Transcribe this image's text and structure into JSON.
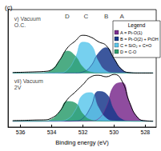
{
  "chart_data": {
    "type": "line",
    "title": "(c)",
    "xlabel": "Binding energy (eV)",
    "x": [
      536.5,
      536,
      535.5,
      535,
      534.5,
      534,
      533.5,
      533,
      532.5,
      532,
      531.5,
      531,
      530.5,
      530,
      529.5,
      529,
      528.5,
      528,
      527.5
    ],
    "xlim": [
      536.8,
      527.3
    ],
    "xticks": [
      536,
      534,
      532,
      530,
      528
    ],
    "ylim": [
      0,
      100
    ],
    "tick_labels": "x",
    "legend": "upper right",
    "legend_title": "Legend",
    "series": [
      {
        "name": "A = Pt-O(1)",
        "type": "area",
        "color": "#7b2d8e",
        "baseline": 5,
        "values": [
          5,
          5,
          5,
          5,
          5,
          5,
          5,
          5,
          5,
          5,
          5.2,
          7.1,
          17.1,
          35.2,
          37.8,
          20.6,
          8.3,
          5.3,
          5
        ]
      },
      {
        "name": "B = Pt-O(2) + PtOH",
        "type": "area",
        "color": "#1a3a8c",
        "baseline": 5,
        "values": [
          5,
          5,
          5,
          5,
          5,
          5,
          5,
          5,
          5.2,
          7.5,
          17.0,
          30.3,
          28.3,
          14.4,
          6.6,
          5.1,
          5,
          5,
          5
        ]
      },
      {
        "name": "C = SiO₂ + C=O",
        "type": "area",
        "color": "#5ec8ec",
        "baseline": 5,
        "values": [
          5,
          5,
          5,
          5,
          5,
          5,
          5.1,
          6.6,
          14.0,
          27.4,
          29.3,
          16.6,
          7.4,
          5.2,
          5,
          5,
          5,
          5,
          5
        ]
      },
      {
        "name": "D = C-O",
        "type": "area",
        "color": "#2e9e6e",
        "baseline": 5,
        "values": [
          5,
          5,
          5,
          5,
          5.1,
          6.7,
          13.0,
          21.8,
          20.5,
          11.2,
          6.1,
          5.1,
          5,
          5,
          5,
          5,
          5,
          5,
          5
        ]
      },
      {
        "name": "B = Pt-O(2) + PtOH",
        "type": "area",
        "color": "#1a3a8c",
        "baseline": 46,
        "values": [
          46,
          46,
          46,
          46,
          46,
          46,
          46,
          46,
          46,
          46.9,
          51.8,
          62.9,
          67.6,
          58.1,
          49.0,
          46.3,
          46,
          46,
          46
        ]
      },
      {
        "name": "C = SiO₂ + C=O",
        "type": "area",
        "color": "#5ec8ec",
        "baseline": 46,
        "values": [
          46,
          46,
          46,
          46,
          46,
          46,
          46.2,
          48.6,
          58.5,
          72.2,
          70.1,
          55.7,
          47.7,
          46.1,
          46,
          46,
          46,
          46,
          46
        ]
      },
      {
        "name": "D = C-O",
        "type": "area",
        "color": "#2e9e6e",
        "baseline": 46,
        "values": [
          46,
          46,
          46,
          46,
          46.3,
          48.6,
          56.5,
          64.7,
          60.6,
          51.0,
          46.7,
          46,
          46,
          46,
          46,
          46,
          46,
          46,
          46
        ]
      },
      {
        "type": "line",
        "color": "#000000",
        "line_style": "solid",
        "values": [
          5.5,
          5.6,
          5.8,
          6,
          6.1,
          7.7,
          13.1,
          23.4,
          29.7,
          36.1,
          42.6,
          44.1,
          42.8,
          44.8,
          39.4,
          20.7,
          8.3,
          5.3,
          5
        ]
      },
      {
        "type": "line",
        "color": "#000000",
        "line_style": "solid",
        "values": [
          46.5,
          46.6,
          46.8,
          47,
          47.3,
          48.8,
          56.7,
          67.3,
          73.1,
          78.1,
          76.6,
          72.6,
          69.3,
          58.2,
          49,
          46.3,
          46,
          46,
          46
        ]
      }
    ],
    "annotations": [
      {
        "text": "D",
        "x": 533.0,
        "y": 94
      },
      {
        "text": "C",
        "x": 531.8,
        "y": 94
      },
      {
        "text": "B",
        "x": 530.5,
        "y": 94
      },
      {
        "text": "A",
        "x": 529.5,
        "y": 94
      }
    ],
    "panel_labels": [
      {
        "text": "v) Vacuum\nO.C.",
        "x": 536.4,
        "y": 95
      },
      {
        "text": "vii) Vacuum\n2V",
        "x": 536.4,
        "y": 42
      }
    ]
  }
}
